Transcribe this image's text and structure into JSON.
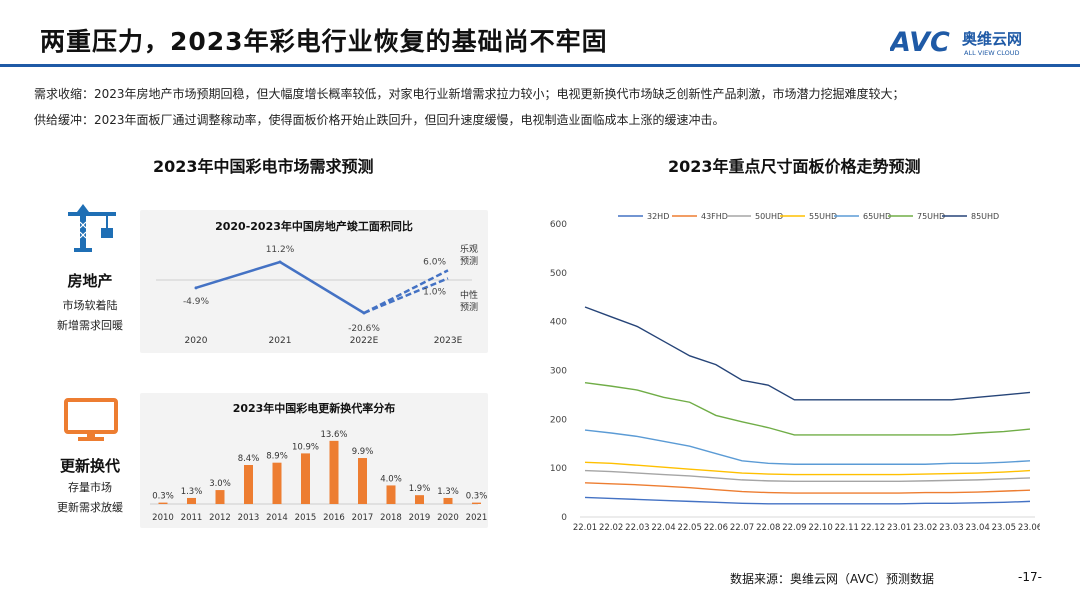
{
  "title": "两重压力，2023年彩电行业恢复的基础尚不牢固",
  "logo": {
    "text": "奥维云网",
    "sub": "ALL VIEW CLOUD",
    "mark": "AVC"
  },
  "notes": [
    "需求收缩：2023年房地产市场预期回稳，但大幅度增长概率较低，对家电行业新增需求拉力较小；电视更新换代市场缺乏创新性产品刺激，市场潜力挖掘难度较大；",
    "供给缓冲：2023年面板厂通过调整稼动率，使得面板价格开始止跌回升，但回升速度缓慢，电视制造业面临成本上涨的缓速冲击。"
  ],
  "left_title": "2023年中国彩电市场需求预测",
  "right_title": "2023年重点尺寸面板价格走势预测",
  "side": [
    {
      "label": "房地产",
      "sub1": "市场软着陆",
      "sub2": "新增需求回暖"
    },
    {
      "label": "更新换代",
      "sub1": "存量市场",
      "sub2": "更新需求放缓"
    }
  ],
  "colors": {
    "accent": "#1f5aa6",
    "bar": "#ed7d31",
    "line": "#4472c4",
    "icon_blue": "#1f6fb5"
  },
  "source": "数据来源：奥维云网（AVC）预测数据",
  "page_number": "-17-",
  "chart_data": [
    {
      "type": "line",
      "title": "2020-2023年中国房地产竣工面积同比",
      "categories": [
        "2020",
        "2021",
        "2022E",
        "2023E"
      ],
      "values": [
        -4.9,
        11.2,
        -20.6
      ],
      "labels": [
        "-4.9%",
        "11.2%",
        "-20.6%"
      ],
      "forecast": [
        {
          "name_line1": "乐观",
          "name_line2": "预测",
          "value": 6.0,
          "label": "6.0%"
        },
        {
          "name_line1": "中性",
          "name_line2": "预测",
          "value": 1.0,
          "label": "1.0%"
        }
      ],
      "ylim": [
        -25,
        15
      ]
    },
    {
      "type": "bar",
      "title": "2023年中国彩电更新换代率分布",
      "categories": [
        "2010",
        "2011",
        "2012",
        "2013",
        "2014",
        "2015",
        "2016",
        "2017",
        "2018",
        "2019",
        "2020",
        "2021"
      ],
      "values": [
        0.3,
        1.3,
        3.0,
        8.4,
        8.9,
        10.9,
        13.6,
        9.9,
        4.0,
        1.9,
        1.3,
        0.3
      ],
      "labels": [
        "0.3%",
        "1.3%",
        "3.0%",
        "8.4%",
        "8.9%",
        "10.9%",
        "13.6%",
        "9.9%",
        "4.0%",
        "1.9%",
        "1.3%",
        "0.3%"
      ],
      "ylim": [
        0,
        14
      ]
    },
    {
      "type": "line",
      "title": "2023年重点尺寸面板价格走势预测",
      "categories": [
        "22.01",
        "22.02",
        "22.03",
        "22.04",
        "22.05",
        "22.06",
        "22.07",
        "22.08",
        "22.09",
        "22.10",
        "22.11",
        "22.12",
        "23.01",
        "23.02",
        "23.03",
        "23.04",
        "23.05",
        "23.06"
      ],
      "yticks": [
        "0",
        "100",
        "200",
        "300",
        "400",
        "500",
        "600"
      ],
      "ylim": [
        0,
        600
      ],
      "series": [
        {
          "name": "32HD",
          "color": "#4472c4",
          "values": [
            40,
            38,
            36,
            34,
            32,
            30,
            28,
            27,
            27,
            27,
            27,
            27,
            27,
            28,
            28,
            29,
            30,
            32
          ]
        },
        {
          "name": "43FHD",
          "color": "#ed7d31",
          "values": [
            70,
            68,
            66,
            63,
            60,
            56,
            52,
            50,
            49,
            49,
            49,
            49,
            49,
            50,
            50,
            51,
            53,
            55
          ]
        },
        {
          "name": "50UHD",
          "color": "#a5a5a5",
          "values": [
            95,
            93,
            90,
            87,
            84,
            80,
            76,
            74,
            73,
            73,
            73,
            73,
            73,
            74,
            75,
            76,
            78,
            80
          ]
        },
        {
          "name": "55UHD",
          "color": "#ffc000",
          "values": [
            112,
            110,
            106,
            102,
            98,
            94,
            90,
            88,
            87,
            87,
            87,
            87,
            87,
            88,
            89,
            90,
            92,
            95
          ]
        },
        {
          "name": "65UHD",
          "color": "#5b9bd5",
          "values": [
            178,
            172,
            165,
            155,
            145,
            130,
            115,
            110,
            108,
            108,
            108,
            108,
            108,
            108,
            110,
            110,
            112,
            115
          ]
        },
        {
          "name": "75UHD",
          "color": "#70ad47",
          "values": [
            275,
            268,
            260,
            245,
            235,
            208,
            195,
            183,
            168,
            168,
            168,
            168,
            168,
            168,
            168,
            172,
            175,
            180
          ]
        },
        {
          "name": "85UHD",
          "color": "#264478",
          "values": [
            430,
            410,
            390,
            360,
            330,
            312,
            280,
            270,
            240,
            240,
            240,
            240,
            240,
            240,
            240,
            245,
            250,
            255
          ]
        }
      ]
    }
  ]
}
